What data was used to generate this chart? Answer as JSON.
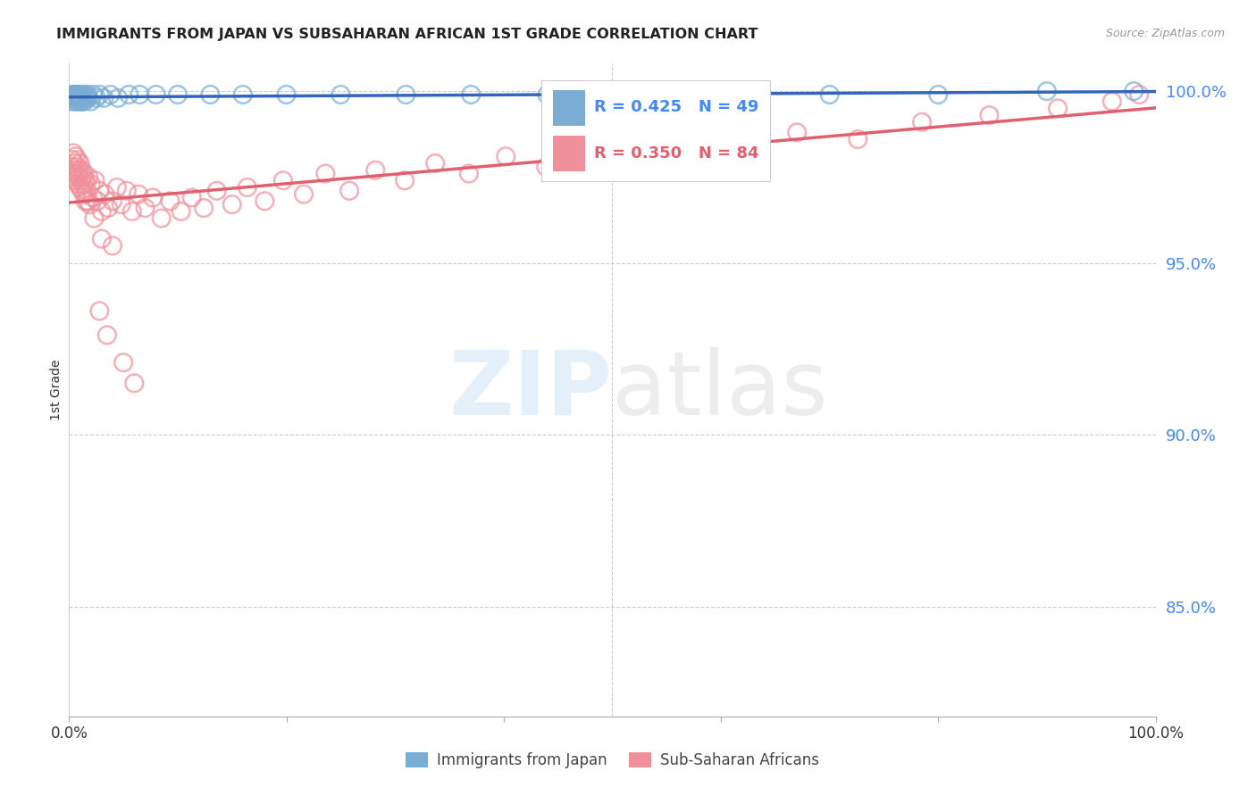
{
  "title": "IMMIGRANTS FROM JAPAN VS SUBSAHARAN AFRICAN 1ST GRADE CORRELATION CHART",
  "source": "Source: ZipAtlas.com",
  "ylabel": "1st Grade",
  "xlim": [
    0.0,
    1.0
  ],
  "ylim": [
    0.818,
    1.008
  ],
  "ytick_vals": [
    0.85,
    0.9,
    0.95,
    1.0
  ],
  "ytick_labels": [
    "85.0%",
    "90.0%",
    "95.0%",
    "100.0%"
  ],
  "xtick_vals": [
    0.0,
    0.2,
    0.4,
    0.6,
    0.8,
    1.0
  ],
  "xtick_labels": [
    "0.0%",
    "",
    "",
    "",
    "",
    "100.0%"
  ],
  "japan_R": 0.425,
  "japan_N": 49,
  "africa_R": 0.35,
  "africa_N": 84,
  "japan_color": "#7AADD4",
  "africa_color": "#F0909A",
  "japan_line_color": "#3366BB",
  "africa_line_color": "#E06070",
  "legend_japan": "Immigrants from Japan",
  "legend_africa": "Sub-Saharan Africans",
  "watermark_zip": "ZIP",
  "watermark_atlas": "atlas",
  "background_color": "#ffffff",
  "ytick_color": "#4488FF",
  "japan_scatter_x": [
    0.002,
    0.003,
    0.003,
    0.004,
    0.005,
    0.005,
    0.006,
    0.006,
    0.007,
    0.007,
    0.008,
    0.008,
    0.009,
    0.009,
    0.01,
    0.01,
    0.011,
    0.012,
    0.012,
    0.013,
    0.014,
    0.015,
    0.016,
    0.017,
    0.018,
    0.02,
    0.022,
    0.025,
    0.028,
    0.032,
    0.038,
    0.045,
    0.055,
    0.065,
    0.08,
    0.1,
    0.13,
    0.16,
    0.2,
    0.25,
    0.31,
    0.37,
    0.44,
    0.52,
    0.6,
    0.7,
    0.8,
    0.9,
    0.98
  ],
  "japan_scatter_y": [
    0.998,
    0.997,
    0.999,
    0.998,
    0.999,
    0.998,
    0.999,
    0.997,
    0.998,
    0.999,
    0.999,
    0.997,
    0.998,
    0.999,
    0.998,
    0.997,
    0.999,
    0.998,
    0.997,
    0.999,
    0.997,
    0.999,
    0.998,
    0.999,
    0.998,
    0.997,
    0.999,
    0.998,
    0.999,
    0.998,
    0.999,
    0.998,
    0.999,
    0.999,
    0.999,
    0.999,
    0.999,
    0.999,
    0.999,
    0.999,
    0.999,
    0.999,
    0.999,
    0.999,
    0.999,
    0.999,
    0.999,
    1.0,
    1.0
  ],
  "africa_scatter_x": [
    0.002,
    0.003,
    0.003,
    0.004,
    0.004,
    0.005,
    0.005,
    0.006,
    0.006,
    0.007,
    0.007,
    0.008,
    0.008,
    0.009,
    0.009,
    0.01,
    0.01,
    0.011,
    0.012,
    0.012,
    0.013,
    0.013,
    0.014,
    0.014,
    0.015,
    0.015,
    0.016,
    0.016,
    0.017,
    0.018,
    0.019,
    0.02,
    0.022,
    0.024,
    0.026,
    0.028,
    0.03,
    0.033,
    0.036,
    0.04,
    0.044,
    0.048,
    0.053,
    0.058,
    0.064,
    0.07,
    0.077,
    0.085,
    0.093,
    0.103,
    0.113,
    0.124,
    0.136,
    0.15,
    0.164,
    0.18,
    0.197,
    0.216,
    0.236,
    0.258,
    0.282,
    0.309,
    0.337,
    0.368,
    0.402,
    0.439,
    0.479,
    0.522,
    0.568,
    0.618,
    0.67,
    0.726,
    0.785,
    0.847,
    0.91,
    0.96,
    0.985,
    0.023,
    0.03,
    0.04,
    0.028,
    0.035,
    0.05,
    0.06
  ],
  "africa_scatter_y": [
    0.978,
    0.976,
    0.98,
    0.975,
    0.982,
    0.977,
    0.979,
    0.974,
    0.981,
    0.976,
    0.978,
    0.973,
    0.98,
    0.975,
    0.977,
    0.972,
    0.979,
    0.974,
    0.971,
    0.977,
    0.973,
    0.975,
    0.97,
    0.976,
    0.968,
    0.974,
    0.971,
    0.973,
    0.968,
    0.975,
    0.967,
    0.973,
    0.969,
    0.974,
    0.968,
    0.971,
    0.965,
    0.97,
    0.966,
    0.968,
    0.972,
    0.967,
    0.971,
    0.965,
    0.97,
    0.966,
    0.969,
    0.963,
    0.968,
    0.965,
    0.969,
    0.966,
    0.971,
    0.967,
    0.972,
    0.968,
    0.974,
    0.97,
    0.976,
    0.971,
    0.977,
    0.974,
    0.979,
    0.976,
    0.981,
    0.978,
    0.983,
    0.98,
    0.985,
    0.982,
    0.988,
    0.986,
    0.991,
    0.993,
    0.995,
    0.997,
    0.999,
    0.963,
    0.957,
    0.955,
    0.936,
    0.929,
    0.921,
    0.915
  ]
}
